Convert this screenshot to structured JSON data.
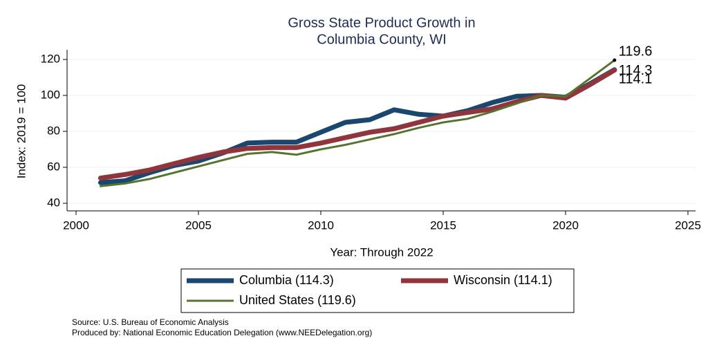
{
  "chart_data": {
    "type": "line",
    "title": [
      "Gross State Product Growth in",
      "Columbia County, WI"
    ],
    "x_label": "Year: Through 2022",
    "y_label": "Index: 2019 = 100",
    "x": [
      2001,
      2002,
      2003,
      2004,
      2005,
      2006,
      2007,
      2008,
      2009,
      2010,
      2011,
      2012,
      2013,
      2014,
      2015,
      2016,
      2017,
      2018,
      2019,
      2020,
      2021,
      2022
    ],
    "series": [
      {
        "name": "Columbia  (114.3)",
        "color": "#1a476f",
        "width": 7,
        "values": [
          51.5,
          52.5,
          57,
          61,
          63.5,
          68,
          73.5,
          74,
          74,
          79.5,
          85,
          86.5,
          92,
          89.5,
          88.5,
          91.5,
          96,
          99.5,
          100,
          99,
          106.5,
          114.3
        ]
      },
      {
        "name": "Wisconsin (114.1)",
        "color": "#90353b",
        "width": 7,
        "values": [
          54,
          56,
          58.5,
          62,
          65.5,
          68.5,
          70.5,
          71,
          71,
          73.5,
          76.5,
          79.5,
          81.5,
          85,
          88.5,
          90.5,
          92.5,
          96.5,
          100,
          98.5,
          106,
          114.1
        ]
      },
      {
        "name": "United States (119.6)",
        "color": "#55752f",
        "width": 3,
        "values": [
          49.5,
          51,
          53.5,
          57,
          60.5,
          64,
          67.5,
          68.5,
          67,
          70,
          72.5,
          75.5,
          78.5,
          82,
          85,
          87,
          91,
          95.5,
          100,
          99.5,
          109.5,
          119.6
        ]
      }
    ],
    "xlim": [
      2000,
      2025
    ],
    "xticks": [
      2000,
      2005,
      2010,
      2015,
      2020,
      2025
    ],
    "ylim": [
      40,
      120
    ],
    "yticks": [
      40,
      60,
      80,
      100,
      120
    ],
    "grid": true,
    "notes": [
      "Source: U.S. Bureau of Economic Analysis",
      "Produced by: National Economic Education Delegation (www.NEEDelegation.org)"
    ]
  }
}
